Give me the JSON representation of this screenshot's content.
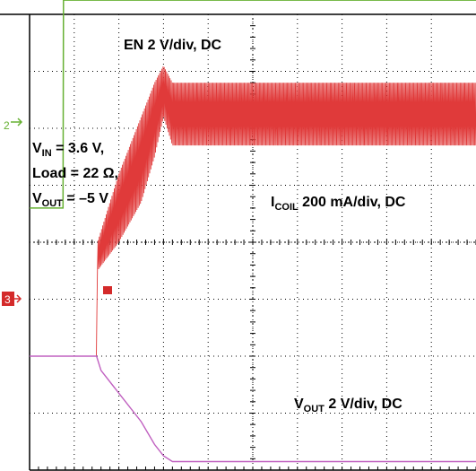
{
  "chart_data": {
    "type": "line",
    "title": "",
    "grid": true,
    "x_divisions": 10,
    "y_divisions": 8,
    "channel_markers": [
      {
        "id": "en",
        "text": "2",
        "color": "#66b032"
      },
      {
        "id": "vout",
        "text": "3",
        "color": "#d42a2a"
      }
    ],
    "annotations": {
      "en_base": "EN 2 V/div, DC",
      "vin_main": "V",
      "vin_sub": "IN",
      "vin_rest": " = 3.6 V,",
      "load": "Load = 22 Ω,",
      "vout_main": "V",
      "vout_sub": "OUT",
      "vout_rest": " = –5 V",
      "icoil_main": "I",
      "icoil_sub": "COIL",
      "icoil_rest": " 200 mA/div, DC",
      "vout2_main": "V",
      "vout2_sub": "OUT",
      "vout2_rest": " 2 V/div, DC"
    },
    "series": [
      {
        "name": "EN",
        "color": "#66b032",
        "x": [
          0,
          0.75,
          0.76,
          10
        ],
        "y": [
          4.6,
          4.6,
          8.25,
          8.25
        ]
      },
      {
        "name": "ICOIL",
        "color": "#e03a3a",
        "envelope": {
          "x": [
            0,
            1.5,
            1.52,
            2.0,
            2.5,
            2.8,
            3.0,
            3.2,
            10
          ],
          "upper": [
            2.0,
            2.0,
            4.0,
            5.2,
            6.2,
            6.8,
            7.1,
            6.8,
            6.8
          ],
          "lower": [
            2.0,
            2.0,
            3.5,
            4.0,
            4.7,
            5.5,
            6.2,
            5.7,
            5.7
          ]
        }
      },
      {
        "name": "VOUT",
        "color": "#c060c0",
        "x": [
          0,
          1.5,
          1.6,
          2.0,
          2.5,
          2.8,
          3.0,
          3.2,
          4.0,
          5.0,
          10
        ],
        "y": [
          2.0,
          2.0,
          1.75,
          1.35,
          0.85,
          0.45,
          0.25,
          0.15,
          0.15,
          0.15,
          0.15
        ]
      }
    ]
  }
}
